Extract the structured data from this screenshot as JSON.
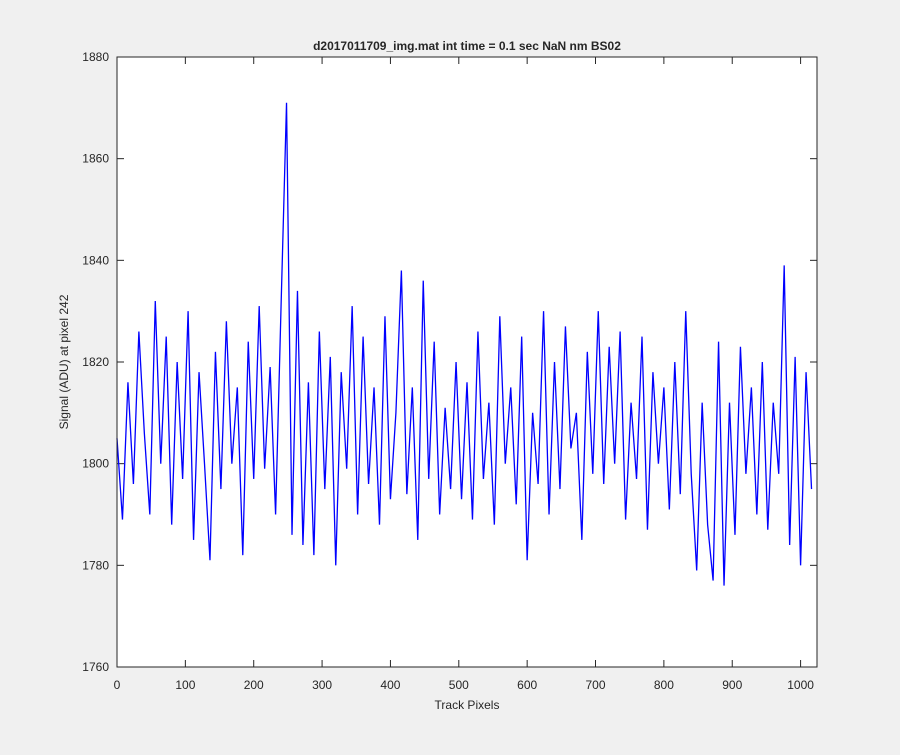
{
  "chart_data": {
    "type": "line",
    "title": "d2017011709_img.mat int time = 0.1 sec  NaN nm BS02",
    "x_label": "Track Pixels",
    "y_label": "Signal (ADU) at pixel 242",
    "x": [
      0,
      8,
      16,
      24,
      32,
      40,
      48,
      56,
      64,
      72,
      80,
      88,
      96,
      104,
      112,
      120,
      128,
      136,
      144,
      152,
      160,
      168,
      176,
      184,
      192,
      200,
      208,
      216,
      224,
      232,
      240,
      248,
      256,
      264,
      272,
      280,
      288,
      296,
      304,
      312,
      320,
      328,
      336,
      344,
      352,
      360,
      368,
      376,
      384,
      392,
      400,
      408,
      416,
      424,
      432,
      440,
      448,
      456,
      464,
      472,
      480,
      488,
      496,
      504,
      512,
      520,
      528,
      536,
      544,
      552,
      560,
      568,
      576,
      584,
      592,
      600,
      608,
      616,
      624,
      632,
      640,
      648,
      656,
      664,
      672,
      680,
      688,
      696,
      704,
      712,
      720,
      728,
      736,
      744,
      752,
      760,
      768,
      776,
      784,
      792,
      800,
      808,
      816,
      824,
      832,
      840,
      848,
      856,
      864,
      872,
      880,
      888,
      896,
      904,
      912,
      920,
      928,
      936,
      944,
      952,
      960,
      968,
      976,
      984,
      992,
      1000,
      1008,
      1016
    ],
    "series": [
      {
        "name": "signal",
        "color": "#0000ff",
        "values": [
          1805,
          1789,
          1816,
          1796,
          1826,
          1806,
          1790,
          1832,
          1800,
          1825,
          1788,
          1820,
          1797,
          1830,
          1785,
          1818,
          1800,
          1781,
          1822,
          1795,
          1828,
          1800,
          1815,
          1782,
          1824,
          1797,
          1831,
          1799,
          1819,
          1790,
          1831,
          1871,
          1786,
          1834,
          1784,
          1816,
          1782,
          1826,
          1795,
          1821,
          1780,
          1818,
          1799,
          1831,
          1790,
          1825,
          1796,
          1815,
          1788,
          1829,
          1793,
          1810,
          1838,
          1794,
          1815,
          1785,
          1836,
          1797,
          1824,
          1790,
          1811,
          1795,
          1820,
          1793,
          1816,
          1789,
          1826,
          1797,
          1812,
          1788,
          1829,
          1800,
          1815,
          1792,
          1825,
          1781,
          1810,
          1796,
          1830,
          1790,
          1820,
          1795,
          1827,
          1803,
          1810,
          1785,
          1822,
          1798,
          1830,
          1796,
          1823,
          1800,
          1826,
          1789,
          1812,
          1797,
          1825,
          1787,
          1818,
          1800,
          1815,
          1791,
          1820,
          1794,
          1830,
          1798,
          1779,
          1812,
          1788,
          1777,
          1824,
          1776,
          1812,
          1786,
          1823,
          1798,
          1815,
          1790,
          1820,
          1787,
          1812,
          1798,
          1839,
          1784,
          1821,
          1780,
          1818,
          1795
        ]
      }
    ],
    "xlim": [
      0,
      1024
    ],
    "xticks": [
      0,
      100,
      200,
      300,
      400,
      500,
      600,
      700,
      800,
      900,
      1000
    ],
    "ylim": [
      1760,
      1880
    ],
    "yticks": [
      1760,
      1780,
      1800,
      1820,
      1840,
      1860,
      1880
    ],
    "grid": false
  }
}
